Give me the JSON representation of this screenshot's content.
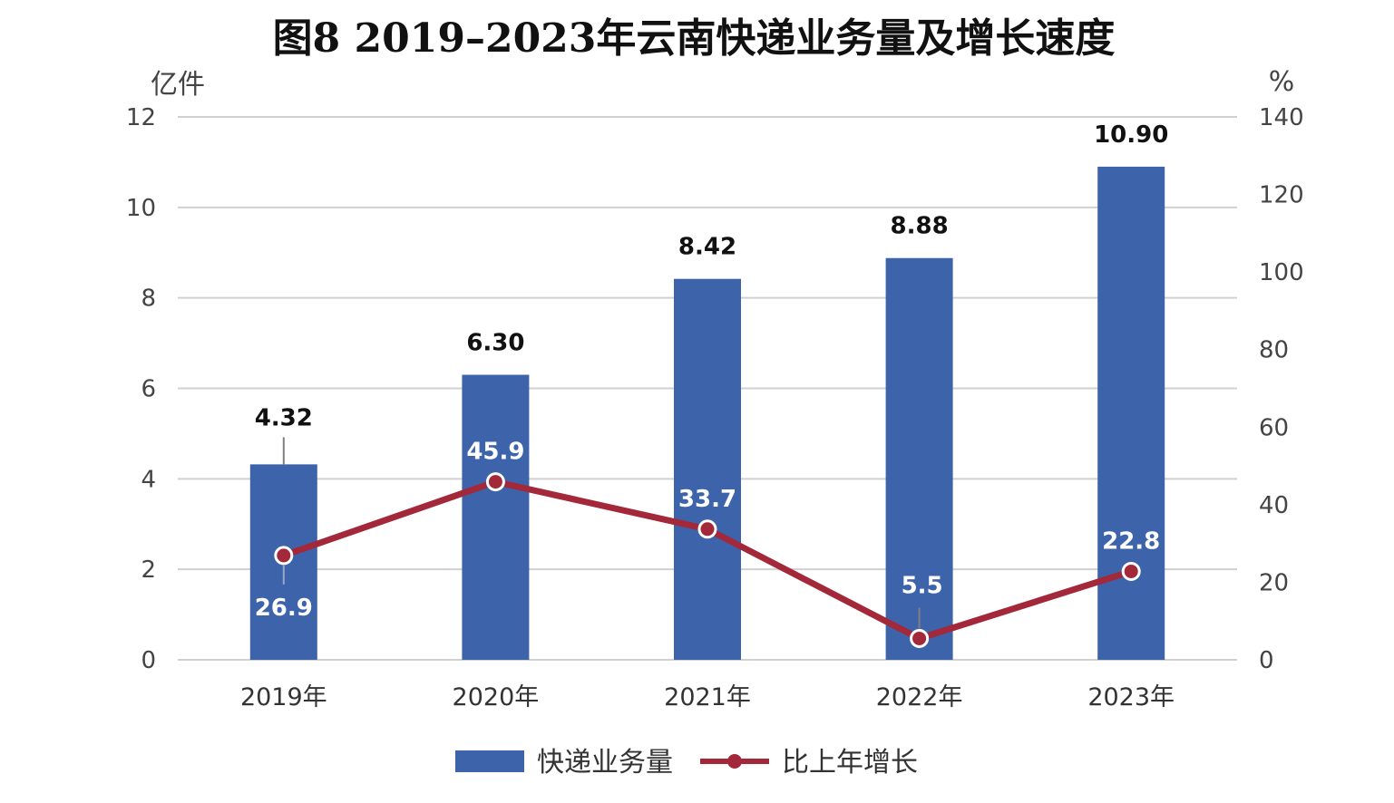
{
  "chart_data": {
    "type": "bar",
    "title": "图8  2019–2023年云南快递业务量及增长速度",
    "categories": [
      "2019年",
      "2020年",
      "2021年",
      "2022年",
      "2023年"
    ],
    "y_left": {
      "unit": "亿件",
      "range": [
        0,
        12
      ],
      "ticks": [
        "0",
        "2",
        "4",
        "6",
        "8",
        "10",
        "12"
      ]
    },
    "y_right": {
      "unit": "%",
      "range": [
        0,
        140
      ],
      "ticks": [
        "0",
        "20",
        "40",
        "60",
        "80",
        "100",
        "120",
        "140"
      ]
    },
    "grid": true,
    "legend_position": "bottom",
    "series": [
      {
        "name": "快递业务量",
        "type": "bar",
        "axis": "left",
        "color": "#3d63aa",
        "values": [
          4.32,
          6.3,
          8.42,
          8.88,
          10.9
        ],
        "labels": [
          "4.32",
          "6.30",
          "8.42",
          "8.88",
          "10.90"
        ]
      },
      {
        "name": "比上年增长",
        "type": "line",
        "axis": "right",
        "color": "#a3283a",
        "values": [
          26.9,
          45.9,
          33.7,
          5.5,
          22.8
        ],
        "labels": [
          "26.9",
          "45.9",
          "33.7",
          "5.5",
          "22.8"
        ]
      }
    ]
  }
}
